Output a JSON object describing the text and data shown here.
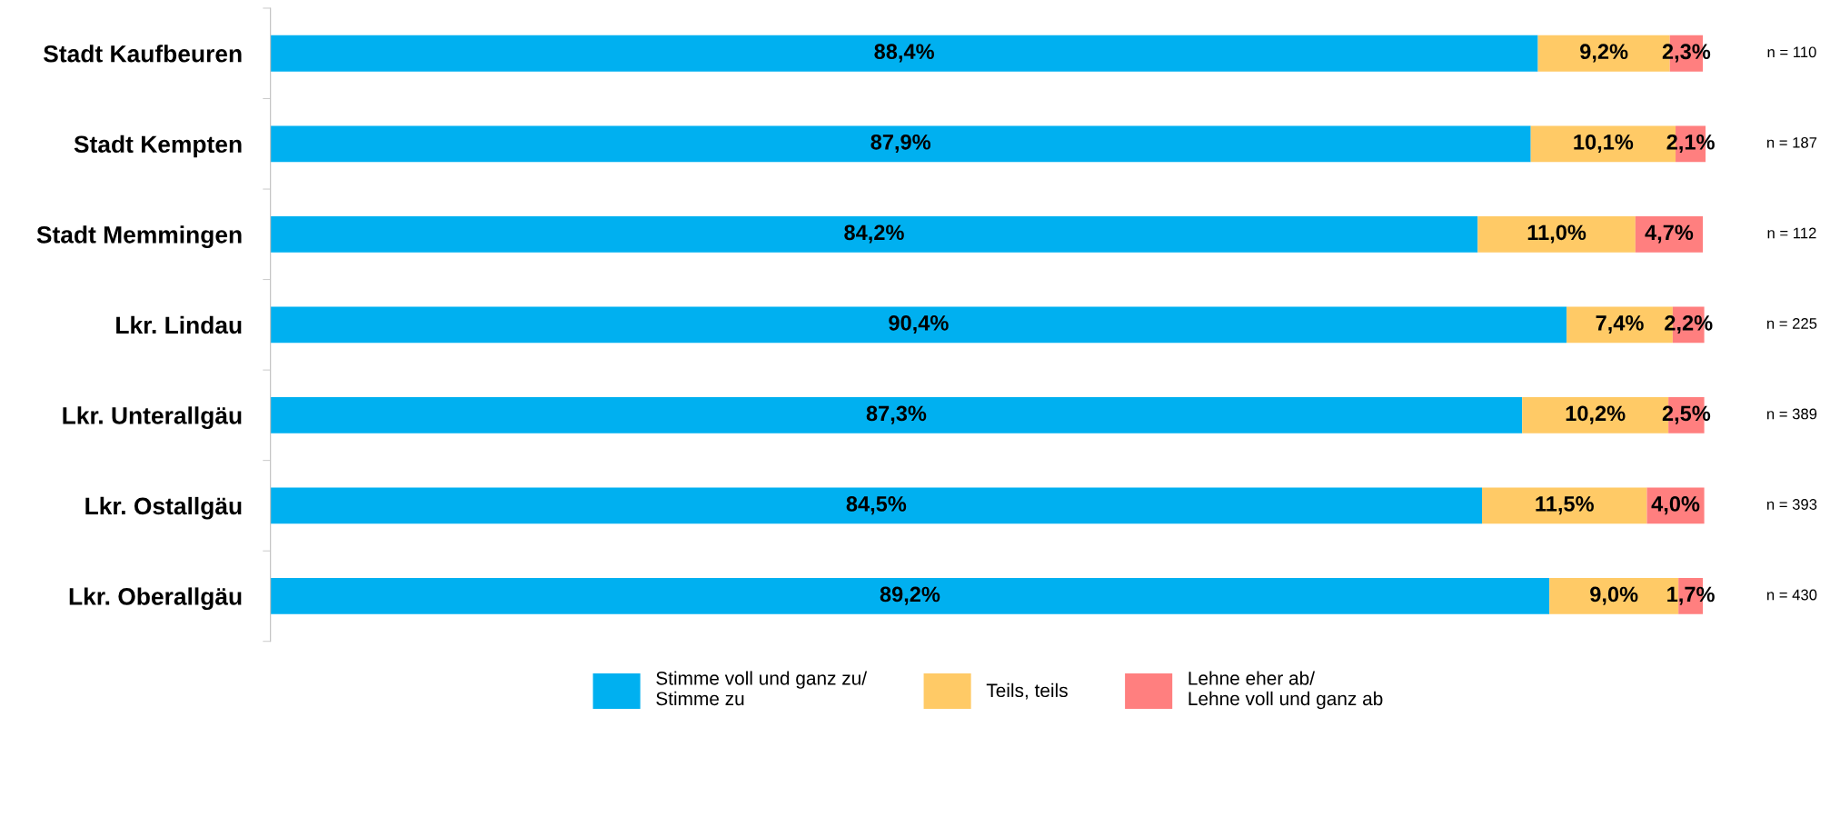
{
  "chart_data": {
    "type": "bar",
    "orientation": "horizontal",
    "stacked": true,
    "legend": "bottom",
    "grid": false,
    "categories": [
      "Stadt Kaufbeuren",
      "Stadt Kempten",
      "Stadt Memmingen",
      "Lkr. Lindau",
      "Lkr. Unterallgäu",
      "Lkr. Ostallgäu",
      "Lkr. Oberallgäu"
    ],
    "series": [
      {
        "name": "Stimme voll und ganz zu/\nStimme zu",
        "color": "#00b0f0",
        "values": [
          88.4,
          87.9,
          84.2,
          90.4,
          87.3,
          84.5,
          89.2
        ],
        "value_labels": [
          "88,4%",
          "87,9%",
          "84,2%",
          "90,4%",
          "87,3%",
          "84,5%",
          "89,2%"
        ]
      },
      {
        "name": "Teils, teils",
        "color": "#ffca66",
        "values": [
          9.2,
          10.1,
          11.0,
          7.4,
          10.2,
          11.5,
          9.0
        ],
        "value_labels": [
          "9,2%",
          "10,1%",
          "11,0%",
          "7,4%",
          "10,2%",
          "11,5%",
          "9,0%"
        ]
      },
      {
        "name": "Lehne eher ab/\nLehne voll und ganz ab",
        "color": "#ff7f7f",
        "values": [
          2.3,
          2.1,
          4.7,
          2.2,
          2.5,
          4.0,
          1.7
        ],
        "value_labels": [
          "2,3%",
          "2,1%",
          "4,7%",
          "2,2%",
          "2,5%",
          "4,0%",
          "1,7%"
        ]
      }
    ],
    "annotations": [
      "n = 110",
      "n = 187",
      "n = 112",
      "n = 225",
      "n = 389",
      "n = 393",
      "n = 430"
    ]
  }
}
